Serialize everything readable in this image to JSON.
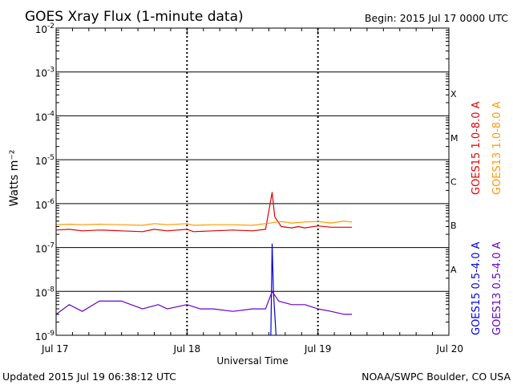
{
  "header": {
    "title": "GOES Xray Flux (1-minute data)",
    "begin_label": "Begin:  2015 Jul 17 0000 UTC"
  },
  "footer": {
    "updated": "Updated 2015 Jul 19 06:38:12 UTC",
    "credit": "NOAA/SWPC Boulder, CO USA"
  },
  "chart_data": {
    "type": "line",
    "title": "GOES Xray Flux (1-minute data)",
    "xlabel": "Universal Time",
    "ylabel": "Watts m⁻²",
    "y_scale": "log",
    "ylim": [
      1e-09,
      0.01
    ],
    "xlim_days": [
      0,
      3
    ],
    "x_ticks": [
      {
        "day": 0,
        "label": "Jul 17"
      },
      {
        "day": 1,
        "label": "Jul 18"
      },
      {
        "day": 2,
        "label": "Jul 19"
      },
      {
        "day": 3,
        "label": "Jul 20"
      }
    ],
    "y_ticks": [
      {
        "exp": -9,
        "label": "10",
        "sup": "-9"
      },
      {
        "exp": -8,
        "label": "10",
        "sup": "-8"
      },
      {
        "exp": -7,
        "label": "10",
        "sup": "-7"
      },
      {
        "exp": -6,
        "label": "10",
        "sup": "-6"
      },
      {
        "exp": -5,
        "label": "10",
        "sup": "-5"
      },
      {
        "exp": -4,
        "label": "10",
        "sup": "-4"
      },
      {
        "exp": -3,
        "label": "10",
        "sup": "-3"
      },
      {
        "exp": -2,
        "label": "10",
        "sup": "-2"
      }
    ],
    "flare_classes": [
      {
        "label": "A",
        "exp": -7.5
      },
      {
        "label": "B",
        "exp": -6.5
      },
      {
        "label": "C",
        "exp": -5.5
      },
      {
        "label": "M",
        "exp": -4.5
      },
      {
        "label": "X",
        "exp": -3.5
      }
    ],
    "grid": true,
    "legend_placement": "right",
    "series": [
      {
        "name": "GOES15 1.0-8.0 A",
        "color": "#e00000",
        "points": [
          [
            0,
            2.5e-07
          ],
          [
            0.1,
            2.6e-07
          ],
          [
            0.2,
            2.4e-07
          ],
          [
            0.33,
            2.5e-07
          ],
          [
            0.5,
            2.4e-07
          ],
          [
            0.66,
            2.3e-07
          ],
          [
            0.75,
            2.6e-07
          ],
          [
            0.85,
            2.4e-07
          ],
          [
            1.0,
            2.6e-07
          ],
          [
            1.05,
            2.3e-07
          ],
          [
            1.2,
            2.4e-07
          ],
          [
            1.35,
            2.5e-07
          ],
          [
            1.5,
            2.4e-07
          ],
          [
            1.6,
            2.6e-07
          ],
          [
            1.65,
            1.8e-06
          ],
          [
            1.67,
            5e-07
          ],
          [
            1.72,
            3e-07
          ],
          [
            1.8,
            2.8e-07
          ],
          [
            1.85,
            3e-07
          ],
          [
            1.9,
            2.8e-07
          ],
          [
            2.0,
            3.1e-07
          ],
          [
            2.1,
            2.9e-07
          ],
          [
            2.2,
            2.9e-07
          ],
          [
            2.26,
            2.9e-07
          ]
        ]
      },
      {
        "name": "GOES13 1.0-8.0 A",
        "color": "#ff9900",
        "points": [
          [
            0,
            3.3e-07
          ],
          [
            0.1,
            3.4e-07
          ],
          [
            0.2,
            3.3e-07
          ],
          [
            0.33,
            3.4e-07
          ],
          [
            0.5,
            3.3e-07
          ],
          [
            0.66,
            3.2e-07
          ],
          [
            0.75,
            3.5e-07
          ],
          [
            0.85,
            3.3e-07
          ],
          [
            1.0,
            3.5e-07
          ],
          [
            1.05,
            3.2e-07
          ],
          [
            1.2,
            3.3e-07
          ],
          [
            1.35,
            3.3e-07
          ],
          [
            1.5,
            3.2e-07
          ],
          [
            1.6,
            3.5e-07
          ],
          [
            1.72,
            3.9e-07
          ],
          [
            1.8,
            3.6e-07
          ],
          [
            1.9,
            3.8e-07
          ],
          [
            2.0,
            3.9e-07
          ],
          [
            2.1,
            3.6e-07
          ],
          [
            2.2,
            4e-07
          ],
          [
            2.26,
            3.8e-07
          ]
        ]
      },
      {
        "name": "GOES15 0.5-4.0 A",
        "color": "#0000e0",
        "points": [
          [
            1.64,
            1e-09
          ],
          [
            1.65,
            1.2e-07
          ],
          [
            1.66,
            1e-08
          ],
          [
            1.68,
            1e-09
          ]
        ]
      },
      {
        "name": "GOES13 0.5-4.0 A",
        "color": "#6600cc",
        "points": [
          [
            0,
            3e-09
          ],
          [
            0.1,
            5e-09
          ],
          [
            0.2,
            3.5e-09
          ],
          [
            0.33,
            6e-09
          ],
          [
            0.5,
            6e-09
          ],
          [
            0.66,
            4e-09
          ],
          [
            0.78,
            5e-09
          ],
          [
            0.85,
            4e-09
          ],
          [
            1.0,
            5e-09
          ],
          [
            1.1,
            4e-09
          ],
          [
            1.2,
            4e-09
          ],
          [
            1.35,
            3.5e-09
          ],
          [
            1.5,
            4e-09
          ],
          [
            1.6,
            4e-09
          ],
          [
            1.65,
            1e-08
          ],
          [
            1.7,
            6e-09
          ],
          [
            1.8,
            5e-09
          ],
          [
            1.9,
            5e-09
          ],
          [
            2.0,
            4e-09
          ],
          [
            2.1,
            3.5e-09
          ],
          [
            2.2,
            3e-09
          ],
          [
            2.26,
            3e-09
          ]
        ]
      }
    ]
  }
}
